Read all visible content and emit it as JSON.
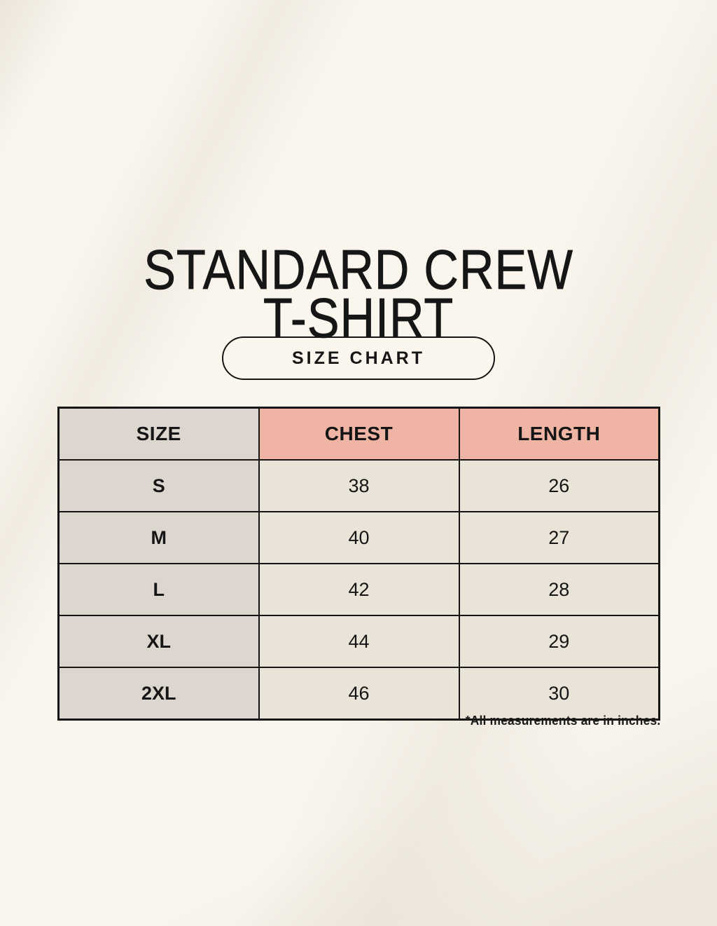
{
  "header": {
    "title_line1": "STANDARD CREW",
    "title_line2": "T-SHIRT",
    "badge_label": "SIZE CHART"
  },
  "chart_data": {
    "type": "table",
    "title": "STANDARD CREW T-SHIRT",
    "subtitle": "SIZE CHART",
    "columns": [
      "SIZE",
      "CHEST",
      "LENGTH"
    ],
    "rows": [
      [
        "S",
        "38",
        "26"
      ],
      [
        "M",
        "40",
        "27"
      ],
      [
        "L",
        "42",
        "28"
      ],
      [
        "XL",
        "44",
        "29"
      ],
      [
        "2XL",
        "46",
        "30"
      ]
    ],
    "note": "*All measurements are in inches.",
    "units": "inches"
  },
  "colors": {
    "background": "#faf6ee",
    "size_column": "#ddd6cf",
    "header_accent": "#efb4a3",
    "data_cell": "#eae4d8",
    "ink": "#151515"
  }
}
